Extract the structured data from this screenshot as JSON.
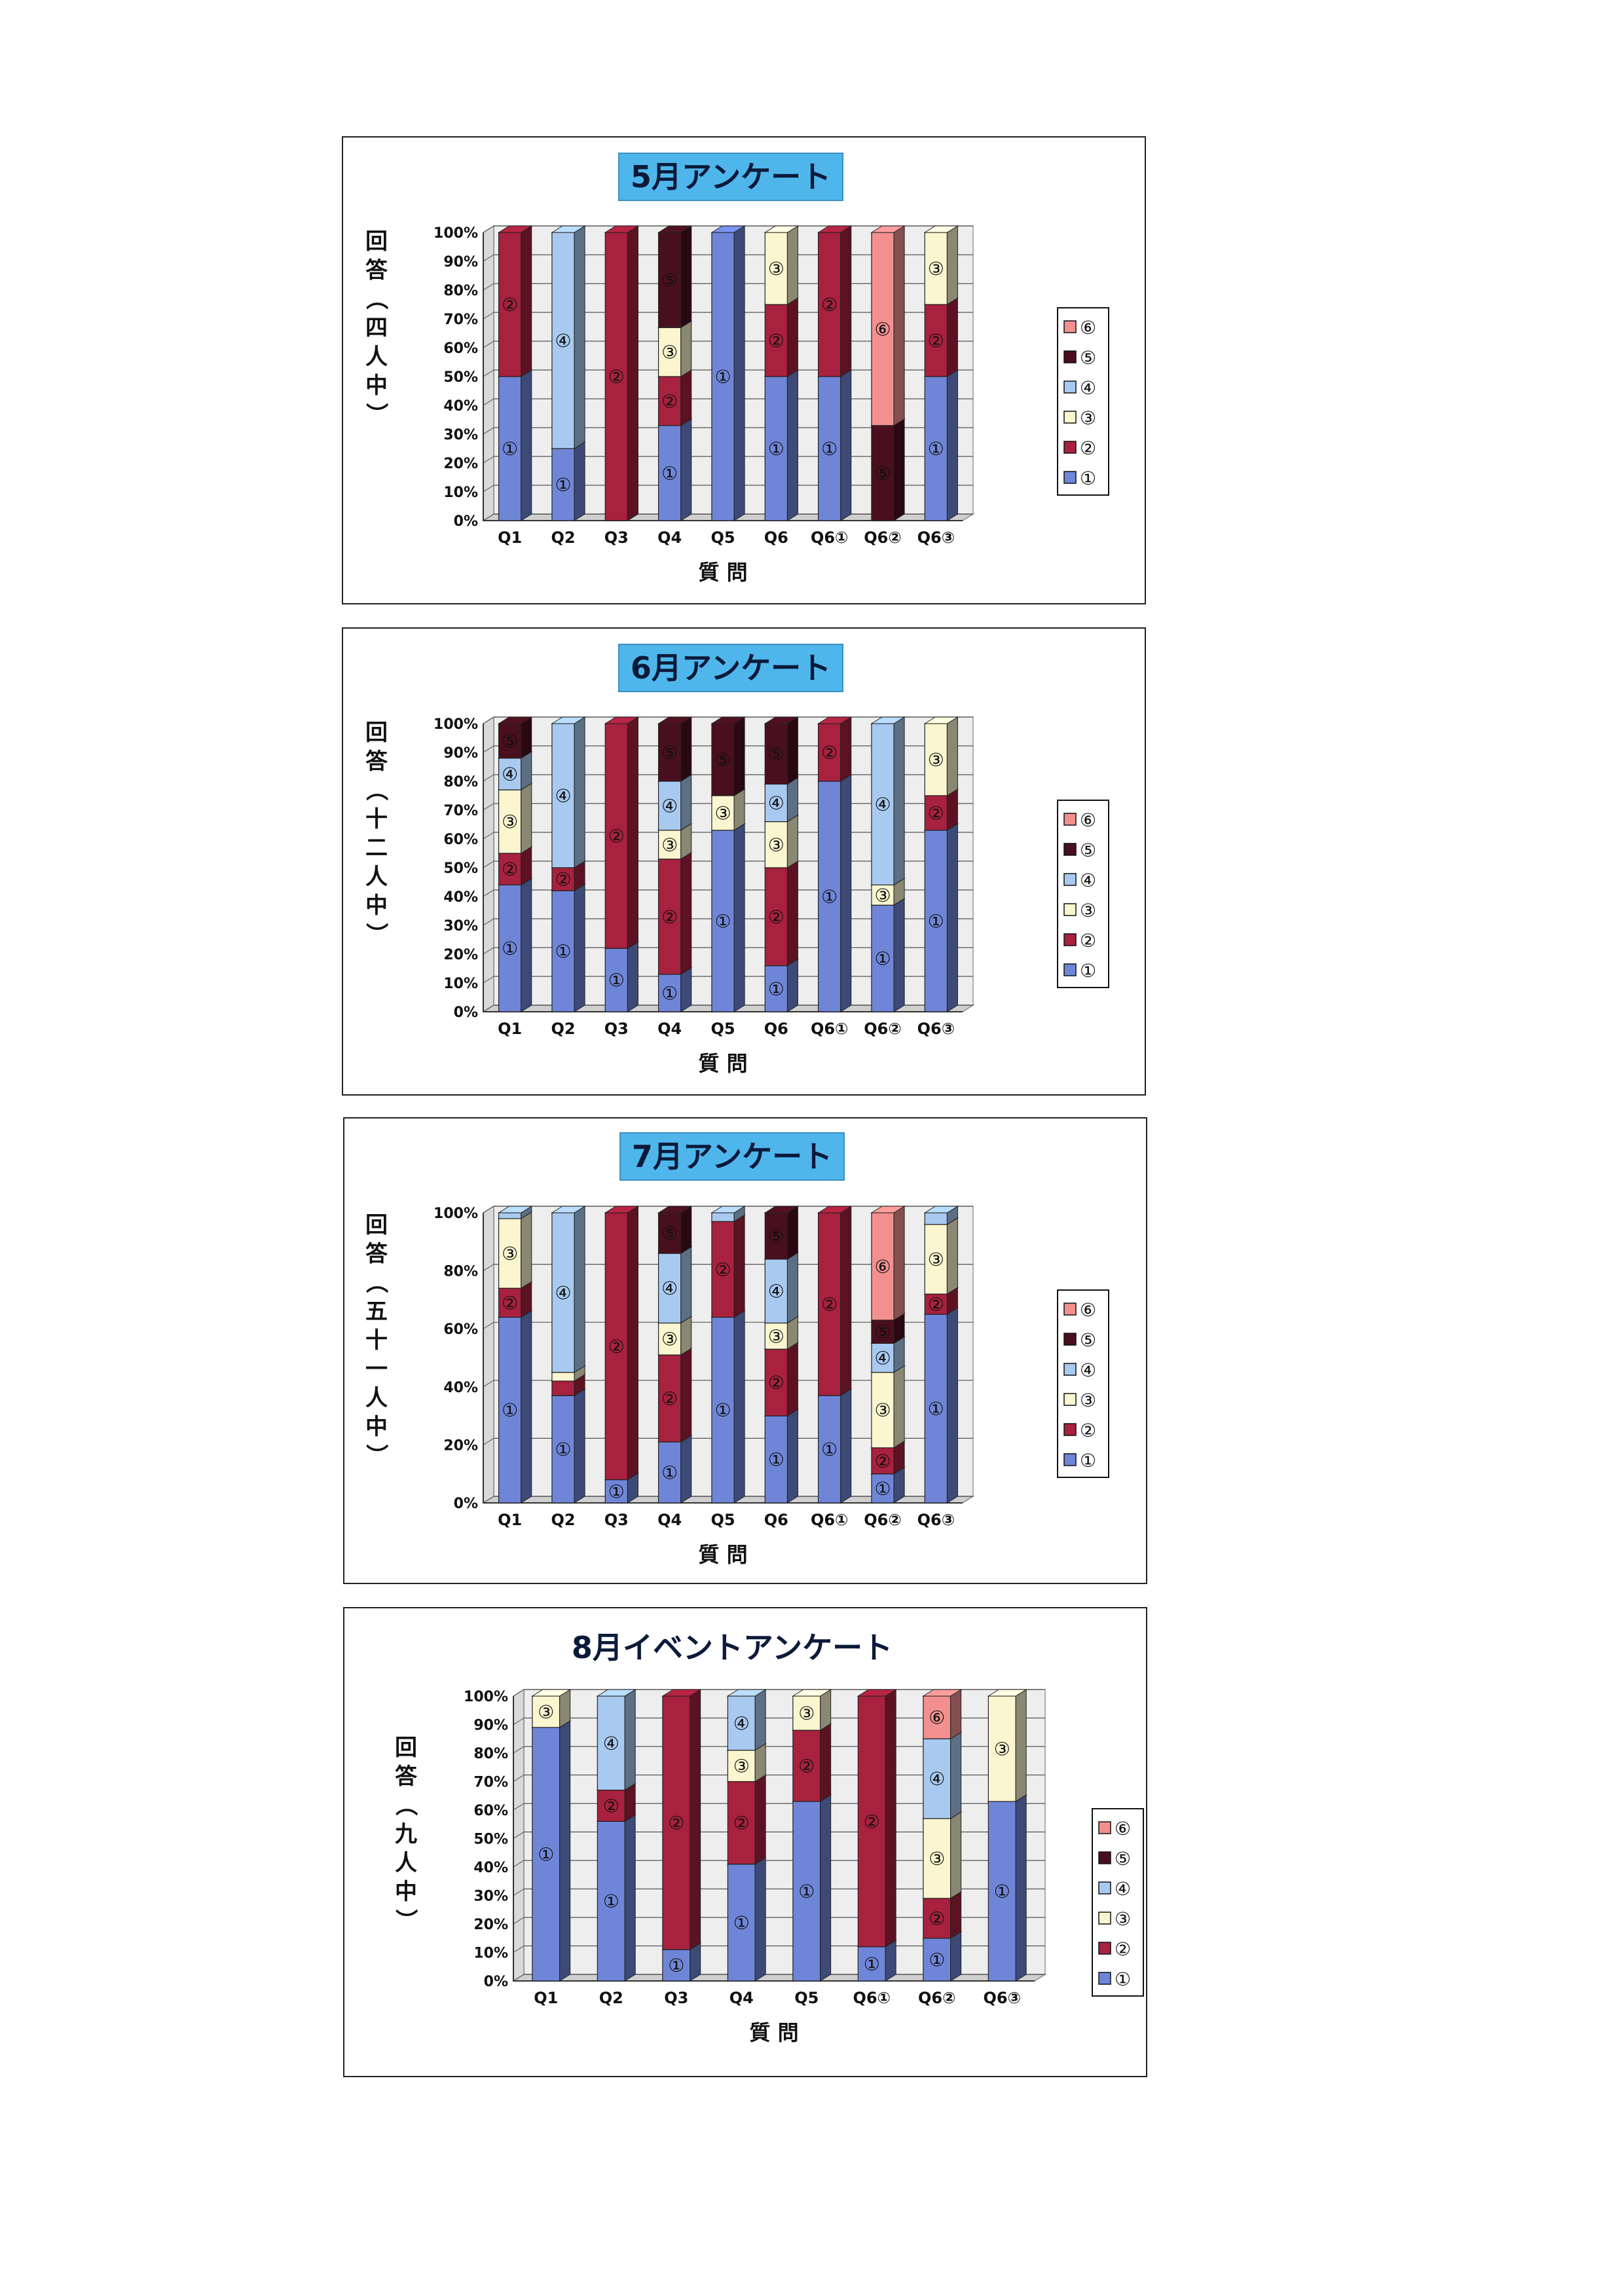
{
  "charts": [
    {
      "title": "5月アンケート",
      "ylabel": "回答（四人中）",
      "xlabel": "質 問",
      "yticks": [
        "0%",
        "10%",
        "20%",
        "30%",
        "40%",
        "50%",
        "60%",
        "70%",
        "80%",
        "90%",
        "100%"
      ],
      "categories": [
        "Q1",
        "Q2",
        "Q3",
        "Q4",
        "Q5",
        "Q6",
        "Q6①",
        "Q6②",
        "Q6③"
      ],
      "legend": [
        "⑥",
        "⑤",
        "④",
        "③",
        "②",
        "①"
      ],
      "title_highlight": true
    },
    {
      "title": "6月アンケート",
      "ylabel": "回答（十二人中）",
      "xlabel": "質 問",
      "yticks": [
        "0%",
        "10%",
        "20%",
        "30%",
        "40%",
        "50%",
        "60%",
        "70%",
        "80%",
        "90%",
        "100%"
      ],
      "categories": [
        "Q1",
        "Q2",
        "Q3",
        "Q4",
        "Q5",
        "Q6",
        "Q6①",
        "Q6②",
        "Q6③"
      ],
      "legend": [
        "⑥",
        "⑤",
        "④",
        "③",
        "②",
        "①"
      ],
      "title_highlight": true
    },
    {
      "title": "7月アンケート",
      "ylabel": "回答（五十一人中）",
      "xlabel": "質 問",
      "yticks": [
        "0%",
        "20%",
        "40%",
        "60%",
        "80%",
        "100%"
      ],
      "categories": [
        "Q1",
        "Q2",
        "Q3",
        "Q4",
        "Q5",
        "Q6",
        "Q6①",
        "Q6②",
        "Q6③"
      ],
      "legend": [
        "⑥",
        "⑤",
        "④",
        "③",
        "②",
        "①"
      ],
      "title_highlight": true
    },
    {
      "title": "8月イベントアンケート",
      "ylabel": "回答（九人中）",
      "xlabel": "質 問",
      "yticks": [
        "0%",
        "10%",
        "20%",
        "30%",
        "40%",
        "50%",
        "60%",
        "70%",
        "80%",
        "90%",
        "100%"
      ],
      "categories": [
        "Q1",
        "Q2",
        "Q3",
        "Q4",
        "Q5",
        "Q6①",
        "Q6②",
        "Q6③"
      ],
      "legend": [
        "⑥",
        "⑤",
        "④",
        "③",
        "②",
        "①"
      ],
      "title_highlight": false
    }
  ],
  "colors": {
    "①": "#6f86d8",
    "②": "#a8213e",
    "③": "#fbf6cf",
    "④": "#a9caf0",
    "⑤": "#4a0f1e",
    "⑥": "#f2908f",
    "title_bg": "#4fb6ec",
    "plot_bg": "#eeeeee"
  },
  "chart_data": [
    {
      "type": "bar",
      "stacked": true,
      "title": "5月アンケート",
      "ylabel": "回答（四人中）",
      "xlabel": "質 問",
      "ylim": [
        0,
        100
      ],
      "categories": [
        "Q1",
        "Q2",
        "Q3",
        "Q4",
        "Q5",
        "Q6",
        "Q6①",
        "Q6②",
        "Q6③"
      ],
      "series": [
        {
          "name": "①",
          "values": [
            50,
            25,
            0,
            33,
            100,
            50,
            50,
            0,
            50
          ]
        },
        {
          "name": "②",
          "values": [
            50,
            0,
            100,
            17,
            0,
            25,
            50,
            0,
            25
          ]
        },
        {
          "name": "③",
          "values": [
            0,
            0,
            0,
            17,
            0,
            25,
            0,
            0,
            25
          ]
        },
        {
          "name": "④",
          "values": [
            0,
            75,
            0,
            0,
            0,
            0,
            0,
            0,
            0
          ]
        },
        {
          "name": "⑤",
          "values": [
            0,
            0,
            0,
            33,
            0,
            0,
            0,
            33,
            0
          ]
        },
        {
          "name": "⑥",
          "values": [
            0,
            0,
            0,
            0,
            0,
            0,
            0,
            67,
            0
          ]
        }
      ]
    },
    {
      "type": "bar",
      "stacked": true,
      "title": "6月アンケート",
      "ylabel": "回答（十二人中）",
      "xlabel": "質 問",
      "ylim": [
        0,
        100
      ],
      "categories": [
        "Q1",
        "Q2",
        "Q3",
        "Q4",
        "Q5",
        "Q6",
        "Q6①",
        "Q6②",
        "Q6③"
      ],
      "series": [
        {
          "name": "①",
          "values": [
            44,
            42,
            22,
            13,
            63,
            16,
            80,
            37,
            63
          ]
        },
        {
          "name": "②",
          "values": [
            11,
            8,
            78,
            40,
            0,
            34,
            20,
            0,
            12
          ]
        },
        {
          "name": "③",
          "values": [
            22,
            0,
            0,
            10,
            12,
            16,
            0,
            7,
            25
          ]
        },
        {
          "name": "④",
          "values": [
            11,
            50,
            0,
            17,
            0,
            13,
            0,
            56,
            0
          ]
        },
        {
          "name": "⑤",
          "values": [
            12,
            0,
            0,
            20,
            25,
            21,
            0,
            0,
            0
          ]
        },
        {
          "name": "⑥",
          "values": [
            0,
            0,
            0,
            0,
            0,
            0,
            0,
            0,
            0
          ]
        }
      ]
    },
    {
      "type": "bar",
      "stacked": true,
      "title": "7月アンケート",
      "ylabel": "回答（五十一人中）",
      "xlabel": "質 問",
      "ylim": [
        0,
        100
      ],
      "categories": [
        "Q1",
        "Q2",
        "Q3",
        "Q4",
        "Q5",
        "Q6",
        "Q6①",
        "Q6②",
        "Q6③"
      ],
      "series": [
        {
          "name": "①",
          "values": [
            64,
            37,
            8,
            21,
            64,
            30,
            37,
            10,
            65
          ]
        },
        {
          "name": "②",
          "values": [
            10,
            5,
            92,
            30,
            33,
            23,
            63,
            9,
            7
          ]
        },
        {
          "name": "③",
          "values": [
            24,
            3,
            0,
            11,
            0,
            9,
            0,
            26,
            24
          ]
        },
        {
          "name": "④",
          "values": [
            2,
            55,
            0,
            24,
            3,
            22,
            0,
            10,
            4
          ]
        },
        {
          "name": "⑤",
          "values": [
            0,
            0,
            0,
            14,
            0,
            16,
            0,
            8,
            0
          ]
        },
        {
          "name": "⑥",
          "values": [
            0,
            0,
            0,
            0,
            0,
            0,
            0,
            37,
            0
          ]
        }
      ]
    },
    {
      "type": "bar",
      "stacked": true,
      "title": "8月イベントアンケート",
      "ylabel": "回答（九人中）",
      "xlabel": "質 問",
      "ylim": [
        0,
        100
      ],
      "categories": [
        "Q1",
        "Q2",
        "Q3",
        "Q4",
        "Q5",
        "Q6①",
        "Q6②",
        "Q6③"
      ],
      "series": [
        {
          "name": "①",
          "values": [
            89,
            56,
            11,
            41,
            63,
            12,
            15,
            63
          ]
        },
        {
          "name": "②",
          "values": [
            0,
            11,
            89,
            29,
            25,
            88,
            14,
            0
          ]
        },
        {
          "name": "③",
          "values": [
            11,
            0,
            0,
            11,
            12,
            0,
            28,
            37
          ]
        },
        {
          "name": "④",
          "values": [
            0,
            33,
            0,
            19,
            0,
            0,
            28,
            0
          ]
        },
        {
          "name": "⑤",
          "values": [
            0,
            0,
            0,
            0,
            0,
            0,
            0,
            0
          ]
        },
        {
          "name": "⑥",
          "values": [
            0,
            0,
            0,
            0,
            0,
            0,
            15,
            0
          ]
        }
      ]
    }
  ]
}
